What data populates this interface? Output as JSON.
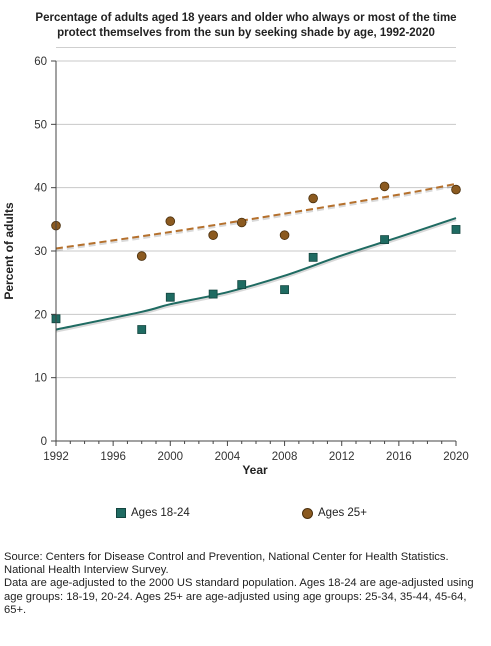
{
  "chart_data": {
    "type": "scatter",
    "title": "Percentage of adults aged 18 years and older who always or most of the time protect themselves from the sun by seeking shade by age, 1992-2020",
    "xlabel": "Year",
    "ylabel": "Percent of adults",
    "xlim": [
      1992,
      2020
    ],
    "ylim": [
      0,
      60
    ],
    "x_ticks": [
      1992,
      1996,
      2000,
      2004,
      2008,
      2012,
      2016,
      2020
    ],
    "y_ticks": [
      0,
      10,
      20,
      30,
      40,
      50,
      60
    ],
    "grid": "horizontal",
    "legend_position": "bottom",
    "series": [
      {
        "name": "Ages 18-24",
        "marker": "square",
        "color": "#1f6b62",
        "points": [
          [
            1992,
            19.3
          ],
          [
            1998,
            17.6
          ],
          [
            2000,
            22.7
          ],
          [
            2003,
            23.2
          ],
          [
            2005,
            24.7
          ],
          [
            2008,
            23.9
          ],
          [
            2010,
            29.0
          ],
          [
            2015,
            31.8
          ],
          [
            2020,
            33.4
          ]
        ],
        "trend": {
          "style": "solid",
          "color": "#1f6b62",
          "points": [
            [
              1992,
              17.6
            ],
            [
              1998,
              20.4
            ],
            [
              2000,
              21.6
            ],
            [
              2004,
              23.5
            ],
            [
              2008,
              26.1
            ],
            [
              2012,
              29.3
            ],
            [
              2016,
              32.2
            ],
            [
              2020,
              35.2
            ]
          ]
        }
      },
      {
        "name": "Ages 25+",
        "marker": "circle",
        "color": "#8b5a20",
        "points": [
          [
            1992,
            34.0
          ],
          [
            1998,
            29.2
          ],
          [
            2000,
            34.7
          ],
          [
            2003,
            32.5
          ],
          [
            2005,
            34.5
          ],
          [
            2008,
            32.5
          ],
          [
            2010,
            38.3
          ],
          [
            2015,
            40.2
          ],
          [
            2020,
            39.7
          ]
        ],
        "trend": {
          "style": "dashed",
          "color": "#b5702c",
          "points": [
            [
              1992,
              30.4
            ],
            [
              2000,
              33.0
            ],
            [
              2008,
              35.9
            ],
            [
              2016,
              38.9
            ],
            [
              2020,
              40.6
            ]
          ]
        }
      }
    ]
  },
  "notes": {
    "source": "Source: Centers for Disease Control and Prevention, National Center for Health Statistics. National Health Interview Survey.",
    "detail": "Data are age-adjusted to the 2000 US standard population. Ages 18-24 are age-adjusted using age groups: 18-19, 20-24. Ages 25+ are age-adjusted using age groups: 25-34, 35-44, 45-64, 65+."
  }
}
